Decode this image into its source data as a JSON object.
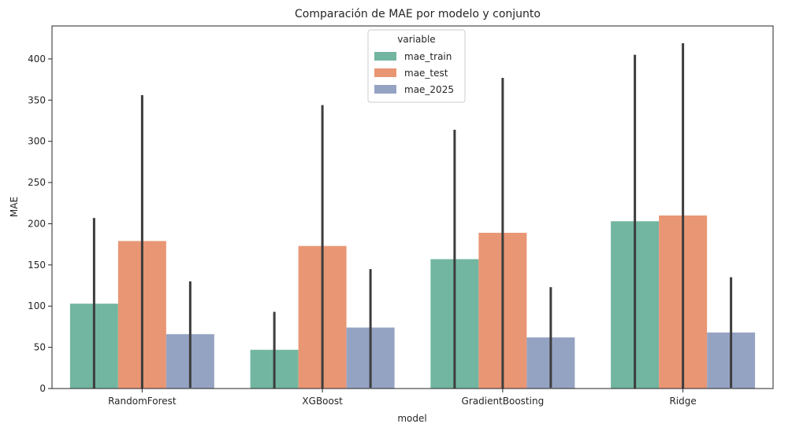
{
  "chart_data": {
    "type": "bar",
    "title": "Comparación de MAE por modelo y conjunto",
    "xlabel": "model",
    "ylabel": "MAE",
    "ylim": [
      0,
      440
    ],
    "yticks": [
      0,
      50,
      100,
      150,
      200,
      250,
      300,
      350,
      400
    ],
    "categories": [
      "RandomForest",
      "XGBoost",
      "GradientBoosting",
      "Ridge"
    ],
    "legend": {
      "title": "variable",
      "placement": "top-center"
    },
    "grid": false,
    "series": [
      {
        "name": "mae_train",
        "color": "#72b6a1",
        "values": [
          103,
          47,
          157,
          203
        ],
        "error_high": [
          207,
          93,
          314,
          405
        ],
        "error_low": [
          0,
          0,
          0,
          0
        ]
      },
      {
        "name": "mae_test",
        "color": "#e99675",
        "values": [
          179,
          173,
          189,
          210
        ],
        "error_high": [
          356,
          344,
          377,
          419
        ],
        "error_low": [
          0,
          0,
          0,
          0
        ]
      },
      {
        "name": "mae_2025",
        "color": "#95a3c3",
        "values": [
          66,
          74,
          62,
          68
        ],
        "error_high": [
          130,
          145,
          123,
          135
        ],
        "error_low": [
          1,
          1,
          1,
          1
        ]
      }
    ]
  }
}
